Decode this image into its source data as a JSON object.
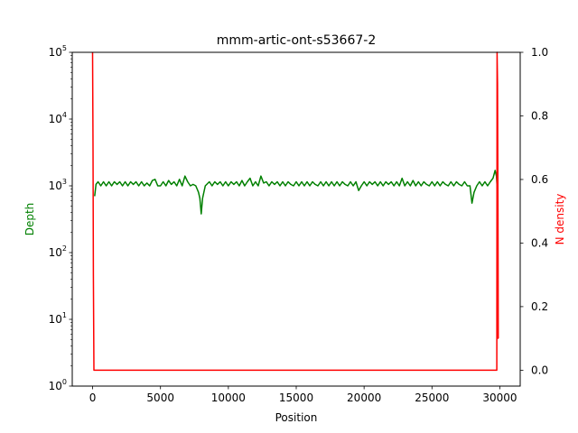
{
  "chart_data": {
    "type": "line",
    "title": "mmm-artic-ont-s53667-2",
    "xlabel": "Position",
    "ylabel_left": "Depth",
    "ylabel_right": "N density",
    "xlim": [
      -1500,
      31500
    ],
    "ylim_left": [
      1,
      100000
    ],
    "ylim_right": [
      -0.05,
      1.0
    ],
    "left_scale": "log",
    "x_ticks": [
      0,
      5000,
      10000,
      15000,
      20000,
      25000,
      30000
    ],
    "x_tick_labels": [
      "0",
      "5000",
      "10000",
      "15000",
      "20000",
      "25000",
      "30000"
    ],
    "left_ticks": [
      {
        "value": 1,
        "base": "10",
        "exp": "0"
      },
      {
        "value": 10,
        "base": "10",
        "exp": "1"
      },
      {
        "value": 100,
        "base": "10",
        "exp": "2"
      },
      {
        "value": 1000,
        "base": "10",
        "exp": "3"
      },
      {
        "value": 10000,
        "base": "10",
        "exp": "4"
      },
      {
        "value": 100000,
        "base": "10",
        "exp": "5"
      }
    ],
    "right_ticks": [
      0.0,
      0.2,
      0.4,
      0.6,
      0.8,
      1.0
    ],
    "right_tick_labels": [
      "0.0",
      "0.2",
      "0.4",
      "0.6",
      "0.8",
      "1.0"
    ],
    "colors": {
      "depth": "#008000",
      "n_density": "#ff0000",
      "axis": "#000000"
    },
    "series": [
      {
        "axis": "left",
        "color": "#008000",
        "x": [
          150,
          250,
          400,
          600,
          800,
          1000,
          1200,
          1400,
          1600,
          1800,
          2000,
          2200,
          2400,
          2600,
          2800,
          3000,
          3200,
          3400,
          3600,
          3800,
          4000,
          4200,
          4400,
          4600,
          4800,
          5000,
          5200,
          5400,
          5600,
          5800,
          6000,
          6200,
          6400,
          6600,
          6800,
          7000,
          7200,
          7400,
          7600,
          7800,
          7900,
          8000,
          8100,
          8300,
          8600,
          8800,
          9000,
          9200,
          9400,
          9600,
          9800,
          10000,
          10200,
          10400,
          10600,
          10800,
          11000,
          11200,
          11400,
          11600,
          11800,
          12000,
          12200,
          12400,
          12600,
          12800,
          13000,
          13200,
          13400,
          13600,
          13800,
          14000,
          14200,
          14400,
          14600,
          14800,
          15000,
          15200,
          15400,
          15600,
          15800,
          16000,
          16200,
          16400,
          16600,
          16800,
          17000,
          17200,
          17400,
          17600,
          17800,
          18000,
          18200,
          18400,
          18600,
          18800,
          19000,
          19200,
          19400,
          19600,
          19800,
          20000,
          20200,
          20400,
          20600,
          20800,
          21000,
          21200,
          21400,
          21600,
          21800,
          22000,
          22200,
          22400,
          22600,
          22800,
          23000,
          23200,
          23400,
          23600,
          23800,
          24000,
          24200,
          24400,
          24600,
          24800,
          25000,
          25200,
          25400,
          25600,
          25800,
          26000,
          26200,
          26400,
          26600,
          26800,
          27000,
          27200,
          27400,
          27600,
          27800,
          27950,
          28100,
          28300,
          28500,
          28700,
          28900,
          29100,
          29300,
          29500,
          29650,
          29750,
          29850
        ],
        "y": [
          700,
          1050,
          1150,
          1000,
          1150,
          1000,
          1150,
          1000,
          1150,
          1050,
          1150,
          1000,
          1150,
          1000,
          1150,
          1050,
          1150,
          1000,
          1150,
          1000,
          1100,
          1000,
          1200,
          1250,
          1000,
          1000,
          1150,
          1000,
          1200,
          1050,
          1150,
          1000,
          1250,
          1000,
          1400,
          1150,
          1000,
          1050,
          1000,
          800,
          650,
          380,
          650,
          1000,
          1150,
          1000,
          1150,
          1050,
          1150,
          1000,
          1150,
          1000,
          1150,
          1050,
          1150,
          1000,
          1200,
          1000,
          1150,
          1300,
          1000,
          1150,
          1000,
          1400,
          1100,
          1150,
          1000,
          1150,
          1050,
          1150,
          1000,
          1150,
          1000,
          1150,
          1050,
          1000,
          1150,
          1000,
          1150,
          1000,
          1150,
          1000,
          1150,
          1050,
          1000,
          1150,
          1000,
          1150,
          1000,
          1150,
          1000,
          1150,
          1000,
          1150,
          1050,
          1000,
          1150,
          1000,
          1150,
          850,
          1000,
          1150,
          1000,
          1150,
          1050,
          1150,
          1000,
          1150,
          1000,
          1150,
          1050,
          1150,
          1000,
          1150,
          1000,
          1300,
          1000,
          1150,
          1000,
          1200,
          1000,
          1150,
          1000,
          1150,
          1050,
          1000,
          1150,
          1000,
          1150,
          1000,
          1150,
          1050,
          1000,
          1150,
          1000,
          1150,
          1050,
          1000,
          1150,
          1000,
          1000,
          550,
          800,
          1000,
          1150,
          1000,
          1150,
          1000,
          1150,
          1300,
          1700,
          1400,
          650
        ]
      },
      {
        "axis": "right",
        "color": "#ff0000",
        "x": [
          0,
          30,
          60,
          100,
          200,
          1000,
          10000,
          20000,
          29500,
          29700,
          29780,
          29800,
          29830,
          29860,
          29880,
          29900
        ],
        "y": [
          1.0,
          0.7,
          0.3,
          0.0,
          0.0,
          0.0,
          0.0,
          0.0,
          0.0,
          0.0,
          0.0,
          1.0,
          0.9,
          0.5,
          0.1,
          0.1
        ]
      }
    ]
  }
}
